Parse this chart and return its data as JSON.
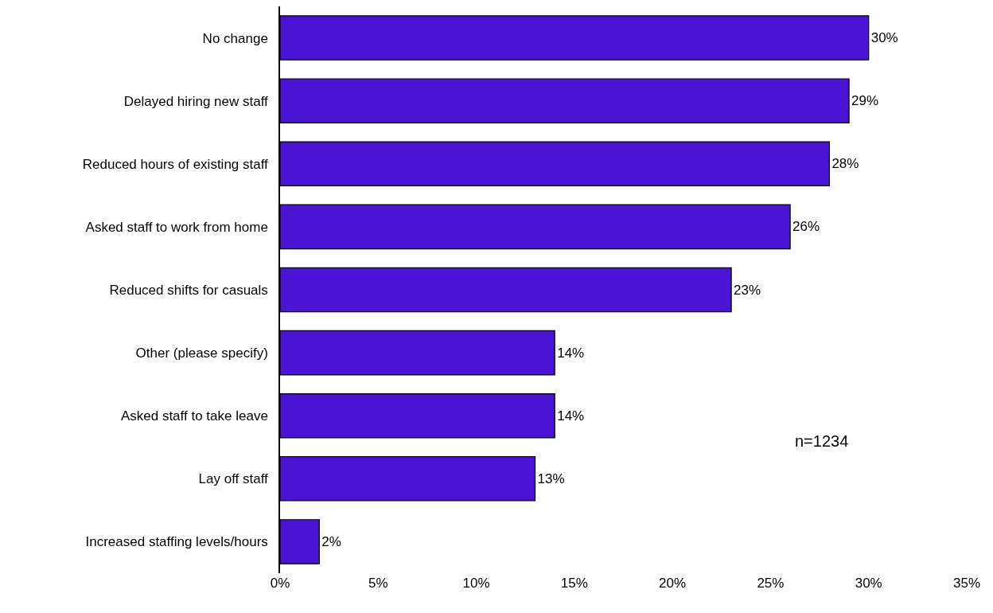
{
  "chart_data": {
    "type": "bar",
    "orientation": "horizontal",
    "categories": [
      "No change",
      "Delayed hiring new staff",
      "Reduced hours of existing staff",
      "Asked staff to work from home",
      "Reduced shifts for casuals",
      "Other (please specify)",
      "Asked staff to take leave",
      "Lay off staff",
      "Increased staffing levels/hours"
    ],
    "values": [
      30,
      29,
      28,
      26,
      23,
      14,
      14,
      13,
      2
    ],
    "value_labels": [
      "30%",
      "29%",
      "28%",
      "26%",
      "23%",
      "14%",
      "14%",
      "13%",
      "2%"
    ],
    "color": "#4b14d4",
    "xlim": [
      0,
      35
    ],
    "xticks": [
      {
        "value": 0,
        "label": "0%"
      },
      {
        "value": 5,
        "label": "5%"
      },
      {
        "value": 10,
        "label": "10%"
      },
      {
        "value": 15,
        "label": "15%"
      },
      {
        "value": 20,
        "label": "20%"
      },
      {
        "value": 25,
        "label": "25%"
      },
      {
        "value": 30,
        "label": "30%"
      },
      {
        "value": 35,
        "label": "35%"
      }
    ],
    "grid": false,
    "legend": false,
    "annotations": [
      "n=1234"
    ]
  }
}
